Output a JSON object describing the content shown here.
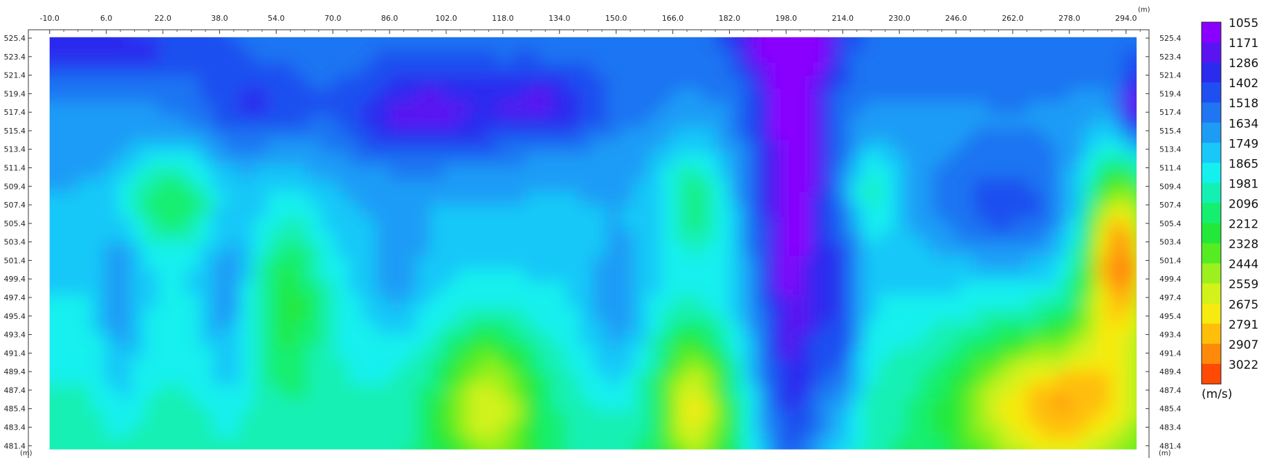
{
  "chart_data": {
    "type": "heatmap",
    "title": "",
    "x_unit": "(m)",
    "y_unit": "(m)",
    "xlim": [
      -16.0,
      300.5
    ],
    "ylim": [
      480.0,
      526.3
    ],
    "x_ticks": [
      -10.0,
      6.0,
      22.0,
      38.0,
      54.0,
      70.0,
      86.0,
      102.0,
      118.0,
      134.0,
      150.0,
      166.0,
      182.0,
      198.0,
      214.0,
      230.0,
      246.0,
      262.0,
      278.0,
      294.0
    ],
    "y_ticks": [
      525.4,
      523.4,
      521.4,
      519.4,
      517.4,
      515.4,
      513.4,
      511.4,
      509.4,
      507.4,
      505.4,
      503.4,
      501.4,
      499.4,
      497.4,
      495.4,
      493.4,
      491.4,
      489.4,
      487.4,
      485.4,
      483.4,
      481.4
    ],
    "colorbar": {
      "unit": "(m/s)",
      "levels": [
        1055,
        1171,
        1286,
        1402,
        1518,
        1634,
        1749,
        1865,
        1981,
        2096,
        2212,
        2328,
        2444,
        2559,
        2675,
        2791,
        2907,
        3022
      ],
      "colors": [
        "#8a00ff",
        "#5a14f2",
        "#2b2bef",
        "#1f4ff0",
        "#1f75f2",
        "#1d9cf6",
        "#18c8f8",
        "#14f0ee",
        "#14f0b4",
        "#14ef70",
        "#22e83a",
        "#55ec22",
        "#9cf01e",
        "#d2f21a",
        "#f6ea10",
        "#ffbe0a",
        "#ff8a0a",
        "#ff4a06"
      ]
    },
    "data_extent": {
      "x_min": -10.0,
      "x_max": 297.0,
      "y_min": 481.0,
      "y_max": 525.5
    },
    "grid": false,
    "legend_placement": "right"
  }
}
